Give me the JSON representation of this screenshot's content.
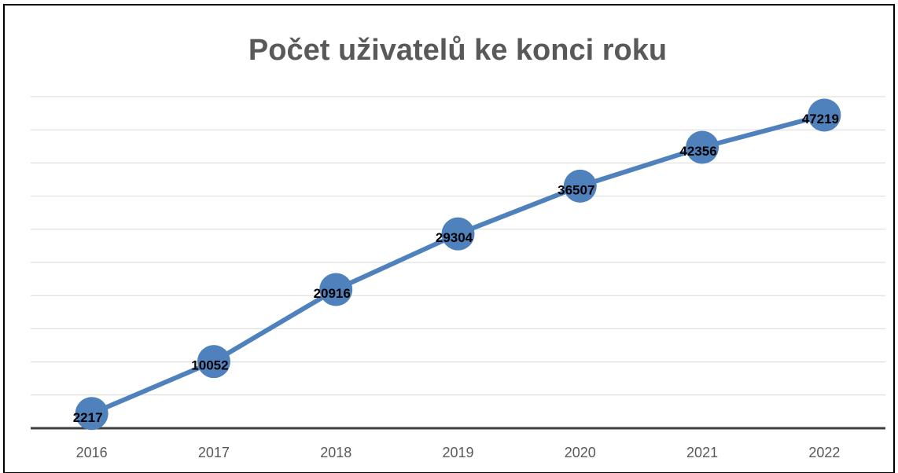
{
  "chart_data": {
    "type": "line",
    "title": "Počet uživatelů ke konci roku",
    "categories": [
      "2016",
      "2017",
      "2018",
      "2019",
      "2020",
      "2021",
      "2022"
    ],
    "values": [
      2217,
      10052,
      20916,
      29304,
      36507,
      42356,
      47219
    ],
    "color": "#4f81bd",
    "ylim": [
      0,
      50000
    ],
    "yticks": [
      0,
      5000,
      10000,
      15000,
      20000,
      25000,
      30000,
      35000,
      40000,
      45000,
      50000
    ],
    "grid": true
  }
}
